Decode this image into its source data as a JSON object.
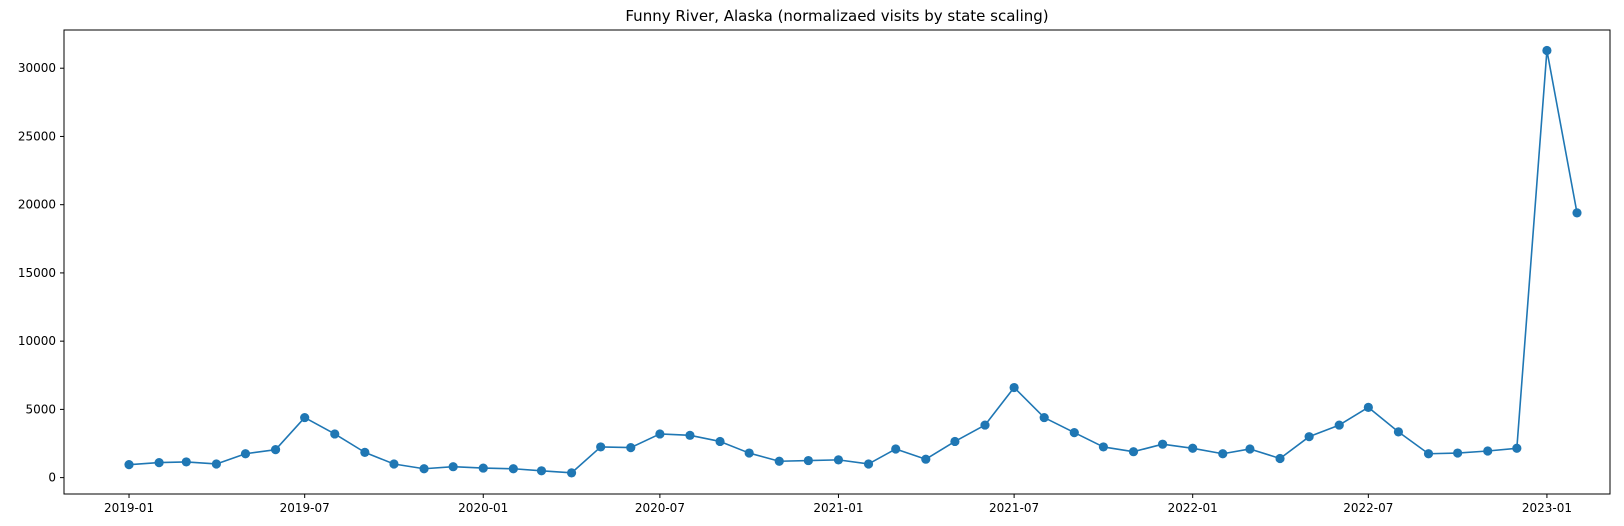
{
  "chart_data": {
    "type": "line",
    "title": "Funny River, Alaska (normalizaed visits by state scaling)",
    "xlabel": "",
    "ylabel": "",
    "x_axis_type": "date",
    "x": [
      "2019-01",
      "2019-02",
      "2019-03",
      "2019-04",
      "2019-05",
      "2019-06",
      "2019-07",
      "2019-08",
      "2019-09",
      "2019-10",
      "2019-11",
      "2019-12",
      "2020-01",
      "2020-02",
      "2020-03",
      "2020-04",
      "2020-05",
      "2020-06",
      "2020-07",
      "2020-08",
      "2020-09",
      "2020-10",
      "2020-11",
      "2020-12",
      "2021-01",
      "2021-02",
      "2021-03",
      "2021-04",
      "2021-05",
      "2021-06",
      "2021-07",
      "2021-08",
      "2021-09",
      "2021-10",
      "2021-11",
      "2021-12",
      "2022-01",
      "2022-02",
      "2022-03",
      "2022-04",
      "2022-05",
      "2022-06",
      "2022-07",
      "2022-08",
      "2022-09",
      "2022-10",
      "2022-11",
      "2022-12",
      "2023-01",
      "2023-02"
    ],
    "series": [
      {
        "color": "#1f77b4",
        "marker": "circle",
        "values": [
          950,
          1100,
          1150,
          1000,
          1750,
          2050,
          4400,
          3200,
          1850,
          1000,
          650,
          800,
          700,
          650,
          500,
          350,
          2250,
          2200,
          3200,
          3100,
          2650,
          1800,
          1200,
          1250,
          1300,
          1000,
          2100,
          1350,
          2650,
          3850,
          6600,
          4400,
          3300,
          2250,
          1900,
          2450,
          2150,
          1750,
          2100,
          1400,
          3000,
          3850,
          5150,
          3350,
          1750,
          1800,
          1950,
          2150,
          31300,
          19400
        ]
      }
    ],
    "x_ticks": [
      "2019-01",
      "2019-07",
      "2020-01",
      "2020-07",
      "2021-01",
      "2021-07",
      "2022-01",
      "2022-07",
      "2023-01"
    ],
    "y_ticks": [
      0,
      5000,
      10000,
      15000,
      20000,
      25000,
      30000
    ],
    "xlim": [
      "2018-10-26",
      "2023-03-07"
    ],
    "ylim": [
      -1200,
      32800
    ],
    "grid": false,
    "legend": "none"
  }
}
